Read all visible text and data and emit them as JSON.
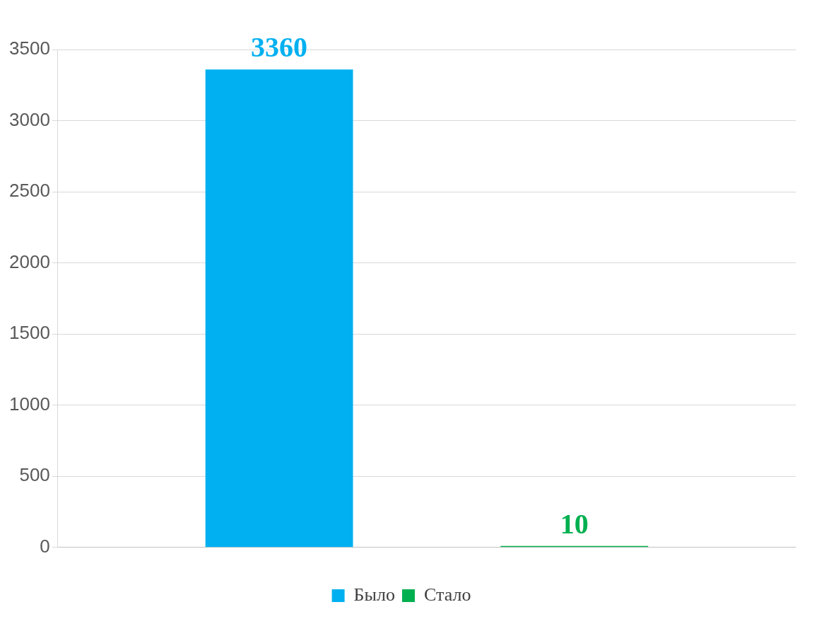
{
  "chart_data": {
    "type": "bar",
    "categories": [
      null
    ],
    "series": [
      {
        "name": "Было",
        "color": "#00b0f0",
        "values": [
          3360
        ]
      },
      {
        "name": "Стало",
        "color": "#00b050",
        "values": [
          10
        ]
      }
    ],
    "ylim": [
      0,
      3500
    ],
    "yticks": [
      0,
      500,
      1000,
      1500,
      2000,
      2500,
      3000,
      3500
    ],
    "grid": "y",
    "legend": "bottom",
    "data_labels": true
  }
}
